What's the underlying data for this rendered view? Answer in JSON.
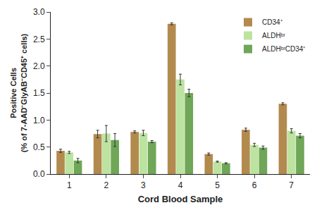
{
  "chart_data": {
    "type": "bar",
    "xlabel": "Cord Blood Sample",
    "ylabel": [
      "Positive Cells",
      "(% of 7-AAD⁻GlyAB⁻CD45⁺ cells)"
    ],
    "categories": [
      "1",
      "2",
      "3",
      "4",
      "5",
      "6",
      "7"
    ],
    "series": [
      {
        "name": "CD34⁺",
        "color": "#b38a4e",
        "values": [
          0.43,
          0.74,
          0.78,
          2.78,
          0.37,
          0.82,
          1.3
        ],
        "errors": [
          0.03,
          0.07,
          0.02,
          0.02,
          0.02,
          0.03,
          0.02
        ]
      },
      {
        "name": "ALDHᵇʳ",
        "color": "#bde3a0",
        "values": [
          0.4,
          0.75,
          0.76,
          1.75,
          0.23,
          0.54,
          0.8
        ],
        "errors": [
          0.02,
          0.15,
          0.05,
          0.1,
          0.01,
          0.03,
          0.04
        ]
      },
      {
        "name": "ALDHᵇʳCD34⁺",
        "color": "#6fa657",
        "values": [
          0.25,
          0.63,
          0.6,
          1.5,
          0.2,
          0.49,
          0.71
        ],
        "errors": [
          0.04,
          0.12,
          0.02,
          0.07,
          0.01,
          0.03,
          0.04
        ]
      }
    ],
    "ylim": [
      0,
      3
    ],
    "yticks": [
      {
        "value": 0,
        "label": "0.0"
      },
      0.5,
      {
        "value": 1,
        "label": "1.0"
      },
      1.5,
      {
        "value": 2,
        "label": "2.0"
      },
      2.5,
      {
        "value": 3,
        "label": "3.0"
      }
    ],
    "grid": false,
    "legend": "upper right"
  }
}
